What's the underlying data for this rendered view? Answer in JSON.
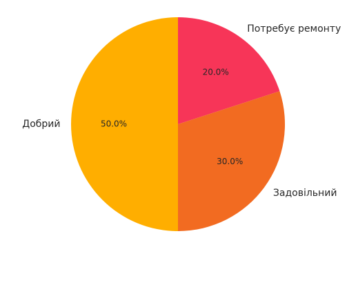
{
  "chart_data": {
    "type": "pie",
    "categories": [
      "Потребує ремонту",
      "Задовільний",
      "Добрий"
    ],
    "values": [
      20,
      30,
      50
    ],
    "value_labels": [
      "20.0%",
      "30.0%",
      "50.0%"
    ],
    "colors": [
      "#f73558",
      "#f26b21",
      "#ffae00"
    ]
  }
}
